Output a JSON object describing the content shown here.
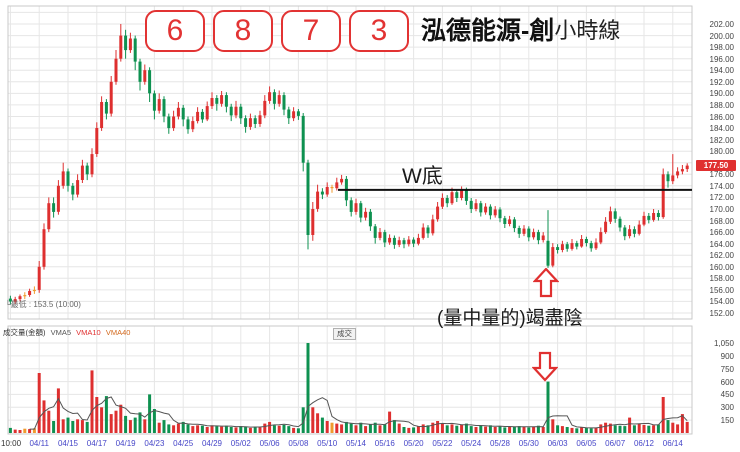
{
  "title": {
    "code_digits": [
      "6",
      "8",
      "7",
      "3"
    ],
    "name": "泓德能源-創",
    "suffix": "小時線"
  },
  "annotations": {
    "w_bottom": "W底",
    "exhaust": "(量中量的)竭盡陰",
    "low_label": "└最低 : 153.5 (10:00)"
  },
  "volume_header": {
    "label": "成交量(金額)",
    "ma1": "VMA5",
    "ma2": "VMA10",
    "ma3": "VMA40"
  },
  "tooltip": {
    "cheng_jiao": "成交"
  },
  "current_price": {
    "value": "177.50"
  },
  "colors": {
    "up": "#de2f2f",
    "down": "#0e9150",
    "doji": "#f09a2e",
    "grid": "#e6e6e6",
    "pane_border": "#c9c9c9",
    "w_line": "#111111",
    "arrow": "#e03030",
    "ma_line": "#555555",
    "date_label": "#4646c8",
    "first_label": "#333333"
  },
  "chart_data": {
    "type": "candlestick",
    "title": "6873 泓德能源-創 小時線",
    "interval": "hourly",
    "price_axis_labels": [
      "202.00",
      "200.00",
      "198.00",
      "196.00",
      "194.00",
      "192.00",
      "190.00",
      "188.00",
      "186.00",
      "184.00",
      "182.00",
      "180.00",
      "178.00",
      "176.00",
      "174.00",
      "172.00",
      "170.00",
      "168.00",
      "166.00",
      "164.00",
      "162.00",
      "160.00",
      "158.00",
      "156.00",
      "154.00",
      "152.00"
    ],
    "price_range": [
      152,
      202
    ],
    "volume_axis_labels": [
      "1,050",
      "900",
      "750",
      "600",
      "450",
      "300",
      "150"
    ],
    "volume_range": [
      0,
      1050
    ],
    "time_labels": [
      "10:00",
      "04/11",
      "04/15",
      "04/17",
      "04/19",
      "04/23",
      "04/25",
      "04/29",
      "05/02",
      "05/06",
      "05/08",
      "05/10",
      "05/14",
      "05/16",
      "05/20",
      "05/22",
      "05/24",
      "05/28",
      "05/30",
      "06/03",
      "06/05",
      "06/07",
      "06/12",
      "06/14"
    ],
    "ticks_every_n_candles": 6,
    "current_price": 177.5,
    "w_line_price": 173.3,
    "arrow_candle_index": 112,
    "lowest": {
      "price": 153.5,
      "time": "10:00"
    },
    "candles": [
      [
        154.5,
        155,
        153.5,
        154
      ],
      [
        154,
        154.8,
        153.6,
        154.4
      ],
      [
        154.4,
        155.2,
        154,
        154.9
      ],
      [
        154.9,
        155.6,
        154.4,
        155.1
      ],
      [
        155.1,
        156.2,
        154.8,
        155.8
      ],
      [
        155.8,
        156.6,
        155.3,
        156
      ],
      [
        156,
        161,
        155.5,
        160
      ],
      [
        160,
        167.5,
        159.5,
        166.5
      ],
      [
        166.5,
        172,
        166,
        171
      ],
      [
        171,
        172,
        168.5,
        169.5
      ],
      [
        169.5,
        175,
        169,
        174
      ],
      [
        174,
        178,
        173.5,
        176.5
      ],
      [
        176.5,
        177,
        173,
        174
      ],
      [
        174,
        174.5,
        171.5,
        172.5
      ],
      [
        172.5,
        176,
        172,
        175
      ],
      [
        175,
        178.5,
        174.5,
        177.5
      ],
      [
        177.5,
        178,
        175,
        176
      ],
      [
        176,
        180.5,
        175.5,
        179.5
      ],
      [
        179.5,
        185,
        179,
        184
      ],
      [
        184,
        189.5,
        183.5,
        188.5
      ],
      [
        188.5,
        189,
        185.5,
        186.5
      ],
      [
        186.5,
        193,
        186,
        192
      ],
      [
        192,
        197.5,
        191.5,
        196
      ],
      [
        196,
        202,
        195.5,
        200
      ],
      [
        200,
        201,
        196,
        197.5
      ],
      [
        197.5,
        200.5,
        197,
        199.5
      ],
      [
        199.5,
        200,
        194,
        195.5
      ],
      [
        195.5,
        196,
        190.5,
        192
      ],
      [
        192,
        195,
        191.5,
        194
      ],
      [
        194,
        194.5,
        188.5,
        190
      ],
      [
        190,
        190.5,
        185.5,
        187
      ],
      [
        187,
        190,
        186.5,
        189
      ],
      [
        189,
        189.5,
        185,
        186
      ],
      [
        186,
        186.5,
        183,
        184
      ],
      [
        184,
        187,
        183.5,
        186
      ],
      [
        186,
        188.5,
        185.5,
        187.5
      ],
      [
        187.5,
        188,
        184.3,
        185.5
      ],
      [
        185.5,
        186,
        183,
        183.8
      ],
      [
        183.8,
        186,
        183.3,
        185.2
      ],
      [
        185.2,
        187.6,
        184.8,
        186.8
      ],
      [
        186.8,
        187.3,
        184.9,
        185.5
      ],
      [
        185.5,
        188.6,
        185.2,
        187.8
      ],
      [
        187.8,
        190.2,
        187.3,
        189.2
      ],
      [
        189.2,
        189.7,
        187,
        188.2
      ],
      [
        188.2,
        190.4,
        187.7,
        189.7
      ],
      [
        189.7,
        190.2,
        186.7,
        187.7
      ],
      [
        187.7,
        188.2,
        185.2,
        186.2
      ],
      [
        186.2,
        188.7,
        185.7,
        187.7
      ],
      [
        187.7,
        188.2,
        184.7,
        185.7
      ],
      [
        185.7,
        186.2,
        183.2,
        184.2
      ],
      [
        184.2,
        186.5,
        183.7,
        185.7
      ],
      [
        185.7,
        186.2,
        184,
        184.7
      ],
      [
        184.7,
        187,
        184.2,
        186.2
      ],
      [
        186.2,
        189.7,
        185.7,
        188.7
      ],
      [
        188.7,
        191.2,
        188.2,
        190.2
      ],
      [
        190.2,
        190.7,
        187.2,
        188.2
      ],
      [
        188.2,
        190.5,
        187.7,
        189.7
      ],
      [
        189.7,
        190.2,
        186.2,
        187.2
      ],
      [
        187.2,
        187.7,
        184.7,
        185.7
      ],
      [
        185.7,
        187.6,
        185.2,
        186.9
      ],
      [
        186.9,
        187.3,
        185.4,
        186.1
      ],
      [
        186.1,
        186.6,
        176.5,
        178
      ],
      [
        178,
        178.5,
        163,
        165.5
      ],
      [
        165.5,
        171.2,
        164.5,
        170
      ],
      [
        170,
        174.2,
        169.5,
        173
      ],
      [
        173,
        173.6,
        171.7,
        172.5
      ],
      [
        172.5,
        174.6,
        172.1,
        173.8
      ],
      [
        173.8,
        174.2,
        172.8,
        173.6
      ],
      [
        173.6,
        175.4,
        173.2,
        174.6
      ],
      [
        174.6,
        175.9,
        174.2,
        175.2
      ],
      [
        175.2,
        175.7,
        170.5,
        171.5
      ],
      [
        171.5,
        172,
        168.7,
        169.5
      ],
      [
        169.5,
        171.8,
        169,
        171
      ],
      [
        171,
        171.4,
        167.7,
        168.5
      ],
      [
        168.5,
        170.2,
        168,
        169.5
      ],
      [
        169.5,
        170,
        166.2,
        167
      ],
      [
        167,
        167.4,
        164,
        165
      ],
      [
        165,
        166.7,
        164.6,
        166
      ],
      [
        166,
        166.4,
        163.4,
        164.2
      ],
      [
        164.2,
        165.6,
        163.8,
        165
      ],
      [
        165,
        165.4,
        163.1,
        163.8
      ],
      [
        163.8,
        165.2,
        163.4,
        164.6
      ],
      [
        164.6,
        165,
        163.2,
        163.9
      ],
      [
        163.9,
        165.3,
        163.5,
        164.7
      ],
      [
        164.7,
        165.1,
        163.4,
        164
      ],
      [
        164,
        165.7,
        163.7,
        165
      ],
      [
        165,
        167.5,
        164.7,
        166.8
      ],
      [
        166.8,
        167.2,
        165,
        165.8
      ],
      [
        165.8,
        169,
        165.4,
        168.2
      ],
      [
        168.2,
        171.2,
        167.8,
        170.4
      ],
      [
        170.4,
        172.7,
        170,
        171.9
      ],
      [
        171.9,
        172.4,
        170.3,
        171
      ],
      [
        171,
        173.7,
        170.7,
        172.9
      ],
      [
        172.9,
        173.4,
        171.2,
        171.9
      ],
      [
        171.9,
        173.9,
        171.5,
        173.3
      ],
      [
        173.3,
        173.7,
        170.7,
        171.4
      ],
      [
        171.4,
        171.9,
        169.3,
        170
      ],
      [
        170,
        171.7,
        169.6,
        171
      ],
      [
        171,
        171.4,
        168.7,
        169.4
      ],
      [
        169.4,
        171,
        169,
        170.4
      ],
      [
        170.4,
        170.8,
        168.2,
        168.9
      ],
      [
        168.9,
        170.5,
        168.5,
        169.9
      ],
      [
        169.9,
        170.3,
        167.7,
        168.4
      ],
      [
        168.4,
        168.8,
        166.7,
        167.4
      ],
      [
        167.4,
        168.8,
        167,
        168.2
      ],
      [
        168.2,
        168.6,
        166,
        166.7
      ],
      [
        166.7,
        167.1,
        165,
        165.7
      ],
      [
        165.7,
        167.2,
        165.3,
        166.6
      ],
      [
        166.6,
        167,
        164.4,
        165.1
      ],
      [
        165.1,
        166.6,
        164.7,
        166
      ],
      [
        166,
        166.4,
        163.9,
        164.6
      ],
      [
        164.6,
        166,
        164.2,
        165.4
      ],
      [
        164.5,
        169.8,
        159.8,
        160.2
      ],
      [
        160.2,
        164.1,
        159.9,
        163.4
      ],
      [
        163.4,
        163.9,
        162.3,
        162.9
      ],
      [
        162.9,
        164.5,
        162.5,
        163.9
      ],
      [
        163.9,
        164.3,
        162.6,
        163.1
      ],
      [
        163.1,
        164.8,
        162.8,
        164.1
      ],
      [
        164.1,
        164.5,
        163,
        163.5
      ],
      [
        163.5,
        165.5,
        163.3,
        164.8
      ],
      [
        164.8,
        165.2,
        163.5,
        164.1
      ],
      [
        164.1,
        164.5,
        162.6,
        163.2
      ],
      [
        163.2,
        164.9,
        162.9,
        164.2
      ],
      [
        164.2,
        166.8,
        163.9,
        166
      ],
      [
        166,
        168.6,
        165.7,
        167.8
      ],
      [
        167.8,
        170.4,
        167.4,
        169.6
      ],
      [
        169.6,
        170.1,
        167.6,
        168.3
      ],
      [
        168.3,
        168.7,
        166.1,
        166.8
      ],
      [
        166.8,
        167.2,
        164.6,
        165.3
      ],
      [
        165.3,
        167.2,
        164.9,
        166.5
      ],
      [
        166.5,
        167,
        165.1,
        165.7
      ],
      [
        165.7,
        168,
        165.4,
        167.3
      ],
      [
        167.3,
        169.5,
        167,
        168.8
      ],
      [
        168.8,
        169.3,
        167.5,
        168.1
      ],
      [
        168.1,
        170,
        167.8,
        169.3
      ],
      [
        169.3,
        169.8,
        168,
        168.6
      ],
      [
        168.6,
        177,
        168.3,
        176
      ],
      [
        176,
        176.5,
        173.7,
        174.8
      ],
      [
        174.8,
        179.5,
        174.3,
        175.8
      ],
      [
        175.8,
        177.2,
        175.3,
        176.5
      ],
      [
        176.5,
        177.6,
        176,
        176.9
      ],
      [
        176.9,
        177.9,
        176.4,
        177.5
      ]
    ],
    "volumes": [
      60,
      40,
      35,
      50,
      45,
      55,
      700,
      380,
      260,
      140,
      520,
      160,
      180,
      140,
      160,
      150,
      130,
      730,
      420,
      300,
      430,
      220,
      260,
      330,
      200,
      150,
      180,
      240,
      160,
      450,
      280,
      120,
      150,
      100,
      90,
      110,
      130,
      100,
      80,
      90,
      85,
      70,
      90,
      80,
      75,
      85,
      70,
      65,
      80,
      70,
      60,
      75,
      65,
      110,
      130,
      90,
      85,
      95,
      80,
      60,
      55,
      300,
      1050,
      300,
      230,
      180,
      140,
      120,
      110,
      100,
      130,
      110,
      90,
      120,
      80,
      100,
      120,
      90,
      100,
      250,
      150,
      110,
      70,
      60,
      65,
      80,
      100,
      90,
      120,
      140,
      110,
      90,
      100,
      85,
      95,
      110,
      80,
      70,
      85,
      75,
      90,
      70,
      80,
      65,
      75,
      70,
      80,
      70,
      65,
      75,
      85,
      70,
      600,
      160,
      90,
      80,
      70,
      60,
      55,
      65,
      60,
      55,
      60,
      100,
      120,
      110,
      90,
      85,
      80,
      180,
      90,
      110,
      95,
      85,
      90,
      100,
      420,
      150,
      120,
      100,
      220,
      130
    ]
  }
}
